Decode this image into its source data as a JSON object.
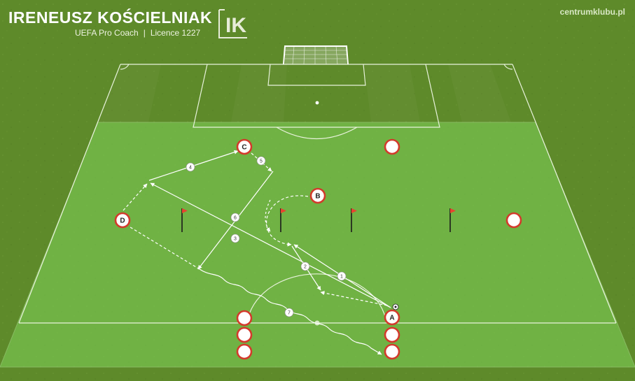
{
  "brand": {
    "name": "IRENEUSZ KOŚCIELNIAK",
    "title": "UEFA Pro Coach",
    "separator": "|",
    "licence": "Licence 1227",
    "logo_letters": "IK",
    "website": "centrumklubu.pl"
  },
  "colors": {
    "grass": "#5e8a2a",
    "drill_zone": "#7fd45a",
    "player_ring": "#d33a2c",
    "flag": "#e8432f"
  },
  "players": [
    {
      "id": "A",
      "label": "A"
    },
    {
      "id": "B",
      "label": "B"
    },
    {
      "id": "C",
      "label": "C"
    },
    {
      "id": "D",
      "label": "D"
    },
    {
      "id": "extra-top-right",
      "label": ""
    },
    {
      "id": "extra-right",
      "label": ""
    },
    {
      "id": "queue-left-1",
      "label": ""
    },
    {
      "id": "queue-left-2",
      "label": ""
    },
    {
      "id": "queue-left-3",
      "label": ""
    },
    {
      "id": "queue-right-1",
      "label": ""
    },
    {
      "id": "queue-right-2",
      "label": ""
    }
  ],
  "steps": [
    "1",
    "2",
    "3",
    "4",
    "5",
    "6",
    "7"
  ],
  "flags": [
    {
      "id": "flag-1"
    },
    {
      "id": "flag-2"
    },
    {
      "id": "flag-3"
    },
    {
      "id": "flag-4"
    }
  ]
}
